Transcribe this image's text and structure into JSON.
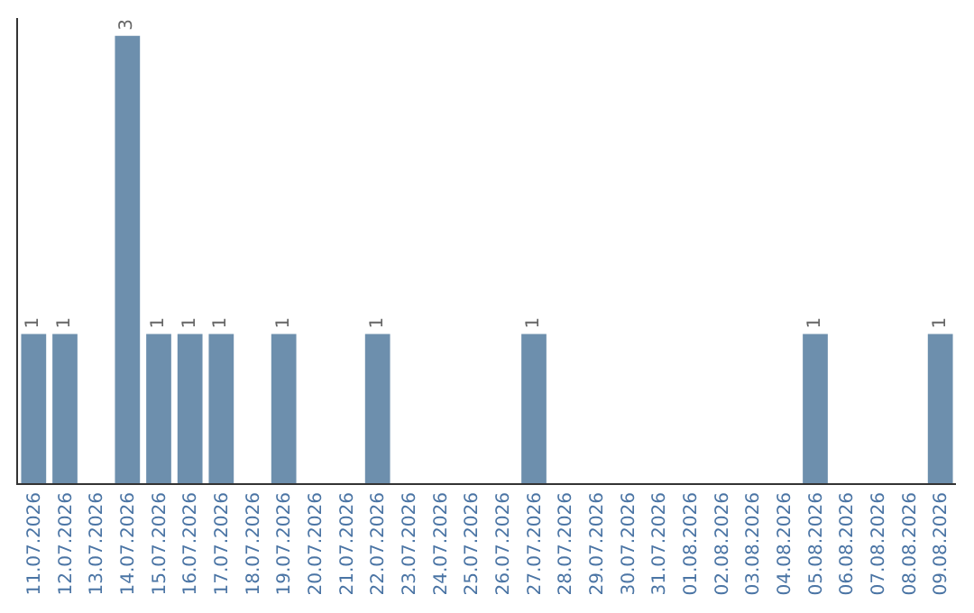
{
  "chart_data": {
    "type": "bar",
    "categories": [
      "11.07.2026",
      "12.07.2026",
      "13.07.2026",
      "14.07.2026",
      "15.07.2026",
      "16.07.2026",
      "17.07.2026",
      "18.07.2026",
      "19.07.2026",
      "20.07.2026",
      "21.07.2026",
      "22.07.2026",
      "23.07.2026",
      "24.07.2026",
      "25.07.2026",
      "26.07.2026",
      "27.07.2026",
      "28.07.2026",
      "29.07.2026",
      "30.07.2026",
      "31.07.2026",
      "01.08.2026",
      "02.08.2026",
      "03.08.2026",
      "04.08.2026",
      "05.08.2026",
      "06.08.2026",
      "07.08.2026",
      "08.08.2026",
      "09.08.2026"
    ],
    "values": [
      1,
      1,
      0,
      3,
      1,
      1,
      1,
      0,
      1,
      0,
      0,
      1,
      0,
      0,
      0,
      0,
      1,
      0,
      0,
      0,
      0,
      0,
      0,
      0,
      0,
      1,
      0,
      0,
      0,
      1
    ],
    "value_labels": [
      "1",
      "1",
      null,
      "3",
      "1",
      "1",
      "1",
      null,
      "1",
      null,
      null,
      "1",
      null,
      null,
      null,
      null,
      "1",
      null,
      null,
      null,
      null,
      null,
      null,
      null,
      null,
      "1",
      null,
      null,
      null,
      "1"
    ],
    "color": "#6d8fad",
    "ylim": [
      0,
      3.12
    ],
    "tick_labels": "x"
  }
}
